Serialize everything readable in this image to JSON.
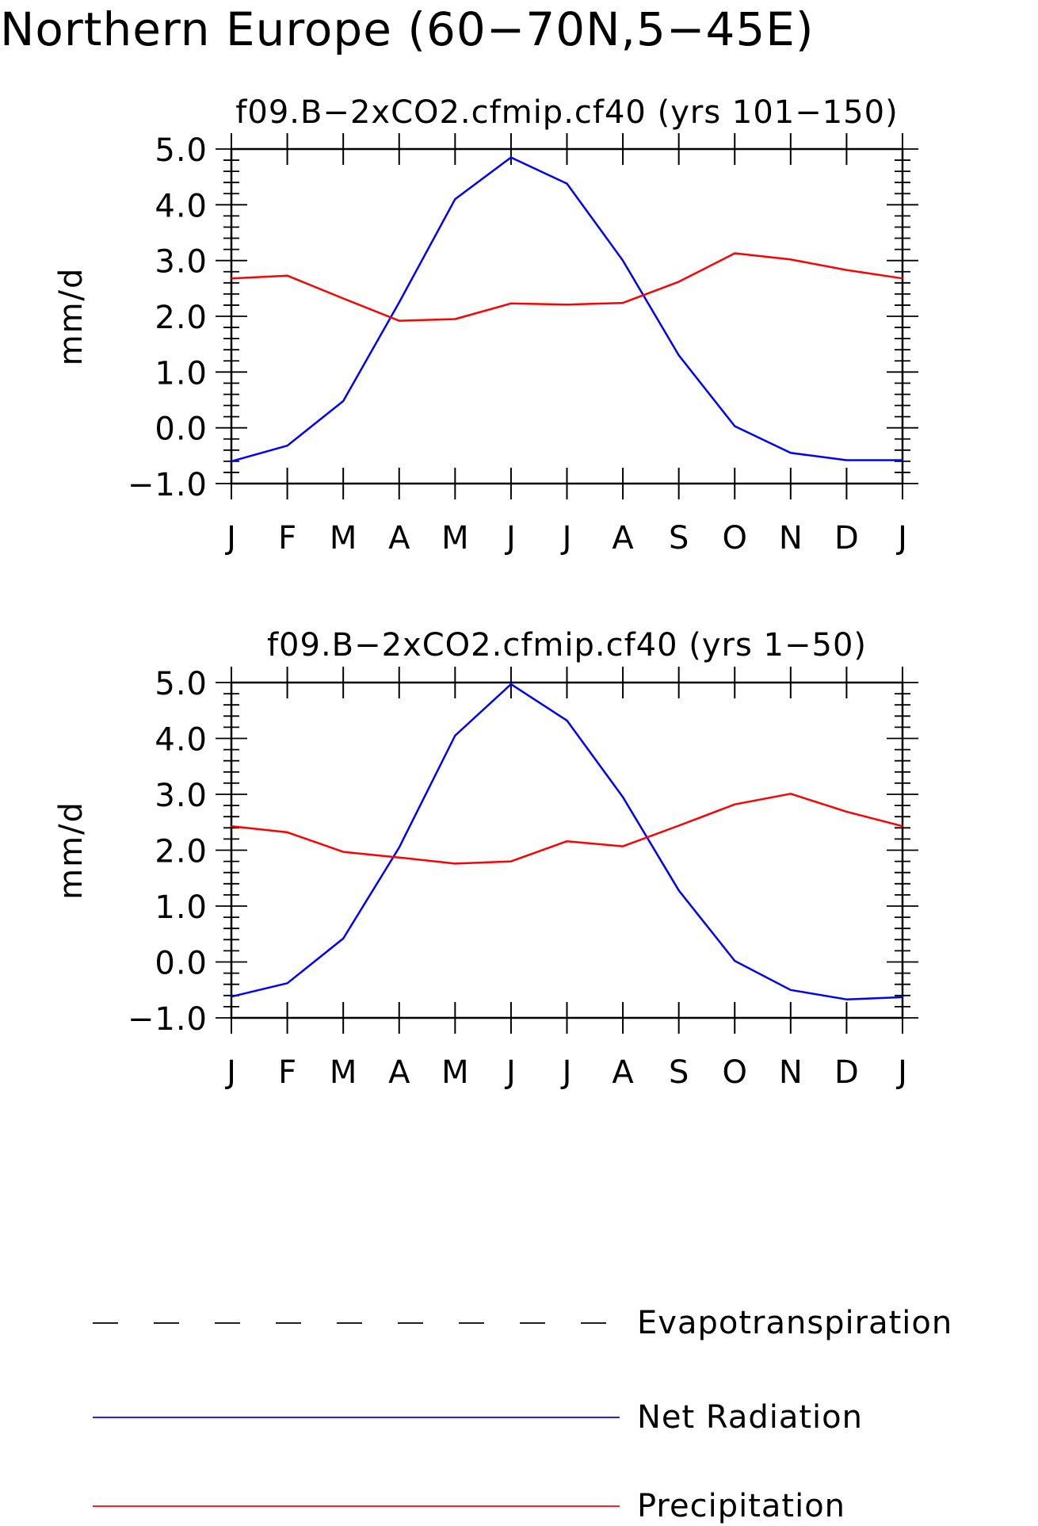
{
  "page_title": "Northern Europe (60−70N,5−45E)",
  "colors": {
    "net_radiation": "#0000ff",
    "precipitation": "#ff0000",
    "evapotranspiration": "#000000"
  },
  "legend": [
    {
      "label": "Evapotranspiration",
      "style": "dashed",
      "color": "#000000"
    },
    {
      "label": "Net Radiation",
      "style": "solid",
      "color": "#0000ff"
    },
    {
      "label": "Precipitation",
      "style": "solid",
      "color": "#ff0000"
    }
  ],
  "chart_data": [
    {
      "type": "line",
      "title": "f09.B−2xCO2.cfmip.cf40 (yrs 101−150)",
      "ylabel": "mm/d",
      "ylim": [
        -1.0,
        5.0
      ],
      "yticks": [
        "−1.0",
        "0.0",
        "1.0",
        "2.0",
        "3.0",
        "4.0",
        "5.0"
      ],
      "categories": [
        "J",
        "F",
        "M",
        "A",
        "M",
        "J",
        "J",
        "A",
        "S",
        "O",
        "N",
        "D",
        "J"
      ],
      "series": [
        {
          "name": "Net Radiation",
          "color": "#0000ff",
          "values": [
            -0.6,
            -0.32,
            0.48,
            2.25,
            4.1,
            4.85,
            4.38,
            3.0,
            1.3,
            0.03,
            -0.45,
            -0.58,
            -0.58
          ]
        },
        {
          "name": "Precipitation",
          "color": "#ff0000",
          "values": [
            2.68,
            2.73,
            2.32,
            1.92,
            1.95,
            2.23,
            2.21,
            2.24,
            2.62,
            3.13,
            3.02,
            2.83,
            2.68
          ]
        }
      ]
    },
    {
      "type": "line",
      "title": "f09.B−2xCO2.cfmip.cf40 (yrs 1−50)",
      "ylabel": "mm/d",
      "ylim": [
        -1.0,
        5.0
      ],
      "yticks": [
        "−1.0",
        "0.0",
        "1.0",
        "2.0",
        "3.0",
        "4.0",
        "5.0"
      ],
      "categories": [
        "J",
        "F",
        "M",
        "A",
        "M",
        "J",
        "J",
        "A",
        "S",
        "O",
        "N",
        "D",
        "J"
      ],
      "series": [
        {
          "name": "Net Radiation",
          "color": "#0000ff",
          "values": [
            -0.62,
            -0.38,
            0.42,
            2.05,
            4.05,
            4.97,
            4.32,
            2.95,
            1.28,
            0.02,
            -0.5,
            -0.67,
            -0.63
          ]
        },
        {
          "name": "Precipitation",
          "color": "#ff0000",
          "values": [
            2.43,
            2.32,
            1.97,
            1.87,
            1.76,
            1.8,
            2.16,
            2.07,
            2.44,
            2.82,
            3.01,
            2.69,
            2.43
          ]
        }
      ]
    }
  ]
}
